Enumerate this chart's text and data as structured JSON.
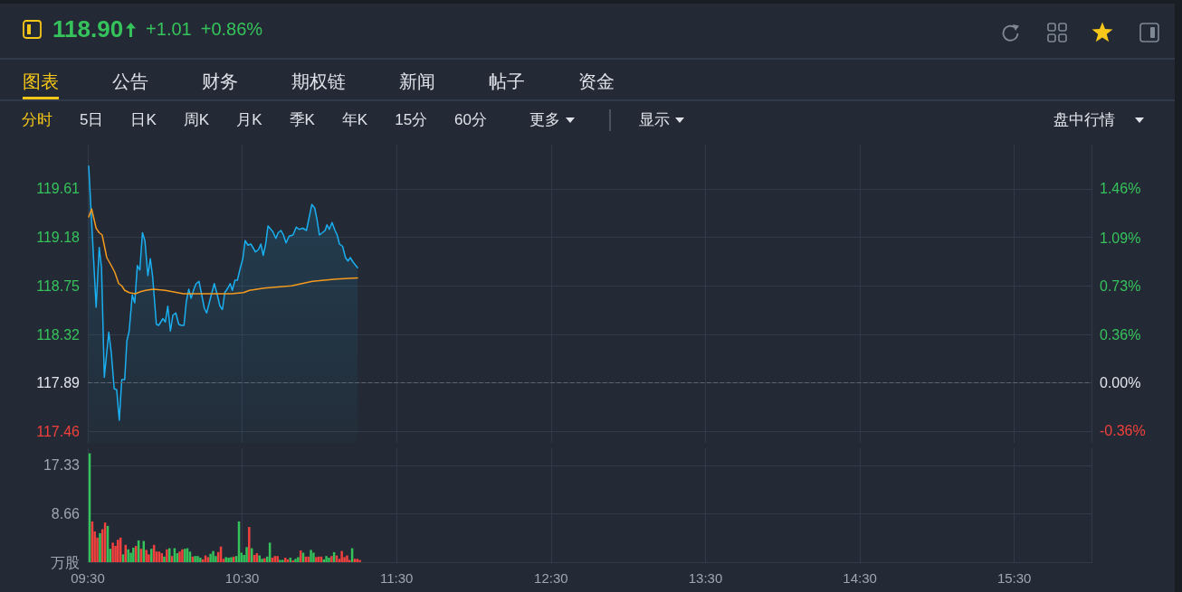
{
  "chart_data": [
    {
      "type": "other",
      "title": "118.90",
      "annotations": [
        "+1.01",
        "+0.86%"
      ]
    },
    {
      "type": "other",
      "annotations": [
        "图表",
        "公告",
        "财务",
        "期权链",
        "新闻",
        "帖子",
        "资金"
      ]
    },
    {
      "type": "other",
      "annotations": [
        "分时",
        "5日",
        "日K",
        "周K",
        "月K",
        "季K",
        "年K",
        "15分",
        "60分"
      ]
    },
    {
      "type": "other",
      "annotations": [
        "更多",
        "显示",
        "盘中行情"
      ]
    },
    {
      "type": "line",
      "series": [
        {
          "type": "area",
          "color": "#1aaff0",
          "x": [
            9.506,
            9.554,
            9.574,
            9.589,
            9.607,
            9.617,
            9.636,
            9.652,
            9.671,
            9.687,
            9.704,
            9.72,
            9.739,
            9.753,
            9.768,
            9.788,
            9.804,
            9.821,
            9.837,
            9.854,
            9.87,
            9.889,
            9.905,
            9.92,
            9.944,
            9.959,
            9.973,
            9.986,
            10.002,
            10.018,
            10.035,
            10.051,
            10.07,
            10.089,
            10.105,
            10.123,
            10.138,
            10.154,
            10.169,
            10.187,
            10.202,
            10.22,
            10.235,
            10.255,
            10.27,
            10.294,
            10.319,
            10.337,
            10.356,
            10.372,
            10.387,
            10.407,
            10.422,
            10.436,
            10.453,
            10.469,
            10.488,
            10.504,
            10.519,
            10.537,
            10.556,
            10.586,
            10.605,
            10.621,
            10.636,
            10.652,
            10.667,
            10.698,
            10.718,
            10.733,
            10.751,
            10.767,
            10.784,
            10.804,
            10.829,
            10.85,
            10.868,
            10.893,
            10.916,
            10.951,
            10.969,
            10.984,
            11.0,
            11.019,
            11.037,
            11.049,
            11.064,
            11.082,
            11.101,
            11.115,
            11.13,
            11.15,
            11.169,
            11.185,
            11.2,
            11.218,
            11.247
          ],
          "values": [
            119.81,
            118.56,
            119.09,
            118.91,
            117.94,
            118.08,
            118.34,
            118.16,
            117.84,
            117.83,
            117.56,
            117.92,
            117.92,
            118.26,
            118.35,
            118.67,
            118.6,
            118.93,
            118.89,
            119.22,
            119.15,
            118.84,
            118.99,
            118.83,
            118.41,
            118.4,
            118.43,
            118.46,
            118.43,
            118.57,
            118.35,
            118.49,
            118.51,
            118.41,
            118.4,
            118.4,
            118.61,
            118.72,
            118.64,
            118.72,
            118.77,
            118.79,
            118.69,
            118.55,
            118.51,
            118.64,
            118.77,
            118.68,
            118.57,
            118.54,
            118.69,
            118.73,
            118.77,
            118.71,
            118.8,
            118.8,
            118.91,
            118.99,
            119.15,
            119.11,
            119.12,
            119.05,
            119.07,
            119.12,
            119.02,
            119.12,
            119.28,
            119.23,
            119.17,
            119.22,
            119.24,
            119.2,
            119.13,
            119.19,
            119.2,
            119.27,
            119.25,
            119.26,
            119.24,
            119.47,
            119.44,
            119.34,
            119.2,
            119.22,
            119.24,
            119.29,
            119.25,
            119.31,
            119.24,
            119.2,
            119.12,
            119.1,
            119.0,
            118.97,
            119.0,
            118.96,
            118.91
          ]
        },
        {
          "type": "line",
          "color": "#f39a1f",
          "x": [
            9.506,
            9.525,
            9.554,
            9.574,
            9.593,
            9.623,
            9.652,
            9.675,
            9.7,
            9.72,
            9.739,
            9.768,
            9.807,
            9.846,
            9.875,
            9.924,
            10.002,
            10.119,
            10.235,
            10.43,
            10.508,
            10.547,
            10.644,
            10.819,
            10.955,
            11.111,
            11.247
          ],
          "values": [
            119.36,
            119.43,
            119.26,
            119.22,
            119.2,
            119.0,
            118.93,
            118.87,
            118.77,
            118.75,
            118.71,
            118.69,
            118.68,
            118.7,
            118.71,
            118.72,
            118.71,
            118.68,
            118.68,
            118.68,
            118.69,
            118.71,
            118.73,
            118.75,
            118.79,
            118.81,
            118.82
          ]
        }
      ],
      "xlim": [
        9.5,
        16
      ],
      "xticks": [
        {
          "value": 9.5,
          "label": null
        },
        {
          "value": 10.5,
          "label": null
        },
        {
          "value": 11.5,
          "label": null
        },
        {
          "value": 12.5,
          "label": null
        },
        {
          "value": 13.5,
          "label": null
        },
        {
          "value": 14.5,
          "label": null
        },
        {
          "value": 15.5,
          "label": null
        }
      ],
      "ylim": [
        117.36,
        120.0
      ],
      "yticks": [
        117.46,
        117.89,
        118.32,
        118.75,
        119.18,
        119.61
      ],
      "y2lim": [
        -0.45,
        1.79
      ],
      "y2ticks": [
        {
          "value": -0.36,
          "label": "-0.36%"
        },
        {
          "value": 0,
          "label": "0.00%"
        },
        {
          "value": 0.36,
          "label": "0.36%"
        },
        {
          "value": 0.73,
          "label": "0.73%"
        },
        {
          "value": 1.09,
          "label": "1.09%"
        },
        {
          "value": 1.46,
          "label": "1.46%"
        }
      ],
      "ref_lines": [
        {
          "axis": "y",
          "value": 117.89,
          "color": "#5d6573",
          "line_style": "dashed"
        }
      ],
      "grid": true,
      "marker": "none",
      "tick_labels": "y"
    },
    {
      "type": "bar",
      "x": [
        9.512,
        9.529,
        9.545,
        9.562,
        9.579,
        9.595,
        9.612,
        9.629,
        9.645,
        9.662,
        9.679,
        9.695,
        9.712,
        9.729,
        9.745,
        9.762,
        9.779,
        9.795,
        9.812,
        9.829,
        9.845,
        9.862,
        9.879,
        9.895,
        9.912,
        9.929,
        9.945,
        9.962,
        9.979,
        9.995,
        10.012,
        10.029,
        10.045,
        10.062,
        10.079,
        10.095,
        10.112,
        10.129,
        10.145,
        10.162,
        10.179,
        10.195,
        10.212,
        10.229,
        10.245,
        10.262,
        10.279,
        10.295,
        10.312,
        10.329,
        10.345,
        10.362,
        10.379,
        10.395,
        10.412,
        10.429,
        10.445,
        10.462,
        10.479,
        10.495,
        10.512,
        10.529,
        10.545,
        10.562,
        10.579,
        10.595,
        10.612,
        10.629,
        10.645,
        10.662,
        10.679,
        10.695,
        10.712,
        10.729,
        10.745,
        10.762,
        10.779,
        10.795,
        10.812,
        10.829,
        10.845,
        10.862,
        10.879,
        10.895,
        10.912,
        10.929,
        10.945,
        10.962,
        10.979,
        10.995,
        11.012,
        11.029,
        11.045,
        11.062,
        11.079,
        11.095,
        11.112,
        11.129,
        11.145,
        11.162,
        11.179,
        11.195,
        11.212,
        11.229,
        11.245,
        11.262
      ],
      "values": [
        19.5,
        7.3,
        5.5,
        4.4,
        5.2,
        5.9,
        7.1,
        6.5,
        2.4,
        3.5,
        2.9,
        4.0,
        4.4,
        1.4,
        3.1,
        2.3,
        1.7,
        2.6,
        2.9,
        3.9,
        2.4,
        3.8,
        2.2,
        1.4,
        2.4,
        3.1,
        1.9,
        1.9,
        1.6,
        1.0,
        2.3,
        2.5,
        1.1,
        2.5,
        1.6,
        1.9,
        2.3,
        2.4,
        2.5,
        1.9,
        1.0,
        1.1,
        1.1,
        0.8,
        0.5,
        1.2,
        0.9,
        1.5,
        2.0,
        1.1,
        1.8,
        2.8,
        0.6,
        0.9,
        0.8,
        0.9,
        1.0,
        1.1,
        7.3,
        1.7,
        1.3,
        2.7,
        6.3,
        2.5,
        1.3,
        1.6,
        1.2,
        0.6,
        0.7,
        1.0,
        3.5,
        0.8,
        1.1,
        1.1,
        0.4,
        0.4,
        0.8,
        0.5,
        0.8,
        0.3,
        0.6,
        0.9,
        2.1,
        1.7,
        1.0,
        1.0,
        2.2,
        1.7,
        0.9,
        1.0,
        1.0,
        0.5,
        1.1,
        0.8,
        1.1,
        1.8,
        1.2,
        0.6,
        2.0,
        0.9,
        1.2,
        0.4,
        2.5,
        0.6,
        0.6,
        0.4
      ],
      "colors": [
        "#35c25a",
        "#f0413e",
        "#f0413e",
        "#f0413e",
        "#35c25a",
        "#f0413e",
        "#f0413e",
        "#35c25a",
        "#35c25a",
        "#f0413e",
        "#f0413e",
        "#f0413e",
        "#f0413e",
        "#35c25a",
        "#f0413e",
        "#35c25a",
        "#35c25a",
        "#35c25a",
        "#f0413e",
        "#35c25a",
        "#f0413e",
        "#35c25a",
        "#f0413e",
        "#f0413e",
        "#35c25a",
        "#f0413e",
        "#f0413e",
        "#f0413e",
        "#f0413e",
        "#35c25a",
        "#f0413e",
        "#35c25a",
        "#f0413e",
        "#35c25a",
        "#35c25a",
        "#f0413e",
        "#f0413e",
        "#35c25a",
        "#35c25a",
        "#35c25a",
        "#f0413e",
        "#35c25a",
        "#35c25a",
        "#35c25a",
        "#f0413e",
        "#f0413e",
        "#f0413e",
        "#35c25a",
        "#35c25a",
        "#35c25a",
        "#f0413e",
        "#f0413e",
        "#f0413e",
        "#35c25a",
        "#35c25a",
        "#35c25a",
        "#f0413e",
        "#35c25a",
        "#35c25a",
        "#35c25a",
        "#35c25a",
        "#35c25a",
        "#f0413e",
        "#35c25a",
        "#f0413e",
        "#f0413e",
        "#35c25a",
        "#35c25a",
        "#f0413e",
        "#35c25a",
        "#35c25a",
        "#f0413e",
        "#f0413e",
        "#f0413e",
        "#35c25a",
        "#35c25a",
        "#f0413e",
        "#f0413e",
        "#35c25a",
        "#f0413e",
        "#35c25a",
        "#35c25a",
        "#f0413e",
        "#35c25a",
        "#f0413e",
        "#f0413e",
        "#35c25a",
        "#35c25a",
        "#f0413e",
        "#f0413e",
        "#f0413e",
        "#35c25a",
        "#35c25a",
        "#35c25a",
        "#f0413e",
        "#35c25a",
        "#f0413e",
        "#f0413e",
        "#f0413e",
        "#f0413e",
        "#f0413e",
        "#f0413e",
        "#35c25a",
        "#f0413e",
        "#f0413e",
        "#f0413e"
      ],
      "xlim": [
        9.5,
        16
      ],
      "xticks": [
        {
          "value": 9.5,
          "label": "09:30"
        },
        {
          "value": 10.5,
          "label": "10:30"
        },
        {
          "value": 11.5,
          "label": "11:30"
        },
        {
          "value": 12.5,
          "label": "12:30"
        },
        {
          "value": 13.5,
          "label": "13:30"
        },
        {
          "value": 14.5,
          "label": "14:30"
        },
        {
          "value": 15.5,
          "label": "15:30"
        }
      ],
      "ylim": [
        0,
        20.4
      ],
      "yticks": [
        {
          "value": 0,
          "label": "万股"
        },
        8.66,
        17.33
      ],
      "grid": true
    }
  ]
}
